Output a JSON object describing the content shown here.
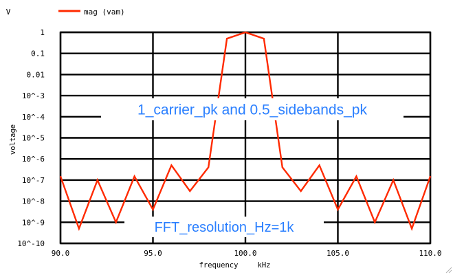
{
  "chart_data": {
    "type": "line",
    "unit_label": "V",
    "ylabel": "voltage",
    "xlabel": "frequency",
    "xunit": "kHz",
    "x_ticks": [
      "90.0",
      "95.0",
      "100.0",
      "105.0",
      "110.0"
    ],
    "y_ticks": [
      "1",
      "0.1",
      "0.01",
      "10^-3",
      "10^-4",
      "10^-5",
      "10^-6",
      "10^-7",
      "10^-8",
      "10^-9",
      "10^-10"
    ],
    "xlim": [
      90,
      110
    ],
    "ylim": [
      1e-10,
      1
    ],
    "yscale": "log",
    "grid": true,
    "legend_position": "top-left",
    "series": [
      {
        "name": "mag (vam)",
        "color": "#ff2a00",
        "x": [
          90,
          91,
          92,
          93,
          94,
          95,
          96,
          97,
          98,
          99,
          100,
          101,
          102,
          103,
          104,
          105,
          106,
          107,
          108,
          109,
          110
        ],
        "y": [
          1.5e-07,
          5e-10,
          1e-07,
          1e-09,
          1.5e-07,
          4e-09,
          5e-07,
          3e-08,
          4e-07,
          0.5,
          1,
          0.5,
          4e-07,
          3e-08,
          5e-07,
          4e-09,
          1.5e-07,
          1e-09,
          1e-07,
          5e-10,
          1.5e-07
        ]
      }
    ],
    "annotations": [
      {
        "text": "1_carrier_pk and 0.5_sidebands_pk",
        "color": "#2a7fff"
      },
      {
        "text": "FFT_resolution_Hz=1k",
        "color": "#2a7fff"
      }
    ]
  }
}
